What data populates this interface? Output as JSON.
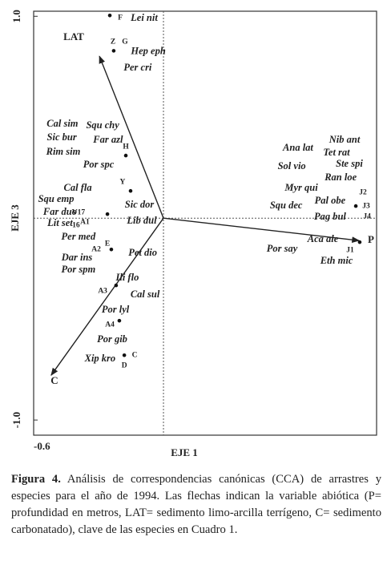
{
  "chart_data": {
    "type": "scatter",
    "xlabel": "EJE 1",
    "ylabel": "EJE 3",
    "xlim": [
      -0.6,
      0.985
    ],
    "ylim": [
      -1.075,
      1.025
    ],
    "xticks": [
      -0.6
    ],
    "yticks": [
      {
        "value": 1,
        "label": "1.0"
      },
      {
        "value": -1,
        "label": "-1.0"
      }
    ],
    "dots": {
      "x": [
        -0.248,
        -0.23,
        -0.174,
        -0.152,
        -0.259,
        -0.241,
        -0.219,
        -0.204,
        -0.181,
        0.907,
        0.889
      ],
      "y": [
        1.004,
        0.829,
        0.31,
        0.135,
        0.02,
        -0.155,
        -0.333,
        -0.508,
        -0.679,
        -0.119,
        0.06
      ]
    },
    "sites": {
      "labels": [
        "F",
        "Z",
        "G",
        "H",
        "Y",
        "V17",
        "16",
        "A1",
        "A2",
        "E",
        "A3",
        "A4",
        "D",
        "C",
        "J1",
        "J2",
        "J3",
        "J4"
      ],
      "x": [
        -0.2,
        -0.233,
        -0.178,
        -0.174,
        -0.189,
        -0.393,
        -0.404,
        -0.363,
        -0.311,
        -0.259,
        -0.281,
        -0.248,
        -0.181,
        -0.133,
        0.863,
        0.922,
        0.937,
        0.941
      ],
      "y": [
        0.992,
        0.873,
        0.873,
        0.353,
        0.179,
        0.028,
        -0.036,
        -0.02,
        -0.155,
        -0.127,
        -0.361,
        -0.528,
        -0.73,
        -0.679,
        -0.159,
        0.127,
        0.06,
        0.008
      ]
    },
    "species": {
      "labels": [
        "Lei nit",
        "Hep eph",
        "Per cri",
        "Cal sim",
        "Squ chy",
        "Sic bur",
        "Far azl",
        "Rim sim",
        "Por spc",
        "Cal fla",
        "Squ emp",
        "Sic dor",
        "Lib dul",
        "Far duo",
        "Lit set",
        "Per med",
        "Dar ins",
        "Pet dio",
        "Por spm",
        "Ili flo",
        "Cal sul",
        "Por lyl",
        "Por gib",
        "Xip kro",
        "Nib ant",
        "Tet rat",
        "Ana lat",
        "Ste spi",
        "Sol vio",
        "Ran loe",
        "Myr qui",
        "Pal obe",
        "Squ dec",
        "Pag bul",
        "Aca ale",
        "Por say",
        "Eth mic"
      ],
      "x": [
        -0.089,
        -0.07,
        -0.119,
        -0.467,
        -0.281,
        -0.47,
        -0.256,
        -0.463,
        -0.3,
        -0.396,
        -0.496,
        -0.111,
        -0.1,
        -0.478,
        -0.478,
        -0.393,
        -0.4,
        -0.096,
        -0.393,
        -0.167,
        -0.085,
        -0.222,
        -0.237,
        -0.293,
        0.837,
        0.8,
        0.622,
        0.859,
        0.593,
        0.819,
        0.637,
        0.77,
        0.567,
        0.77,
        0.737,
        0.548,
        0.8
      ],
      "y": [
        0.988,
        0.825,
        0.742,
        0.464,
        0.456,
        0.397,
        0.385,
        0.325,
        0.262,
        0.147,
        0.091,
        0.063,
        -0.016,
        0.028,
        -0.028,
        -0.095,
        -0.198,
        -0.175,
        -0.258,
        -0.298,
        -0.381,
        -0.456,
        -0.603,
        -0.698,
        0.385,
        0.321,
        0.345,
        0.266,
        0.254,
        0.198,
        0.147,
        0.083,
        0.06,
        0.004,
        -0.107,
        -0.155,
        -0.214
      ]
    },
    "arrows": {
      "labels": [
        "LAT",
        "P",
        "C"
      ],
      "x": [
        -0.296,
        0.904,
        -0.519
      ],
      "y": [
        0.802,
        -0.111,
        -0.778
      ],
      "label_x": [
        -0.415,
        0.959,
        -0.504
      ],
      "label_y": [
        0.893,
        -0.111,
        -0.81
      ]
    }
  },
  "caption": {
    "label": "Figura 4.",
    "text": "Análisis de correspondencias canónicas (CCA) de arrastres y especies para el año de 1994. Las flechas indican la variable abiótica (P= profundidad en metros, LAT= sedimento limo-arcilla terrígeno, C= sedimento carbonatado), clave de las especies en Cuadro 1."
  }
}
